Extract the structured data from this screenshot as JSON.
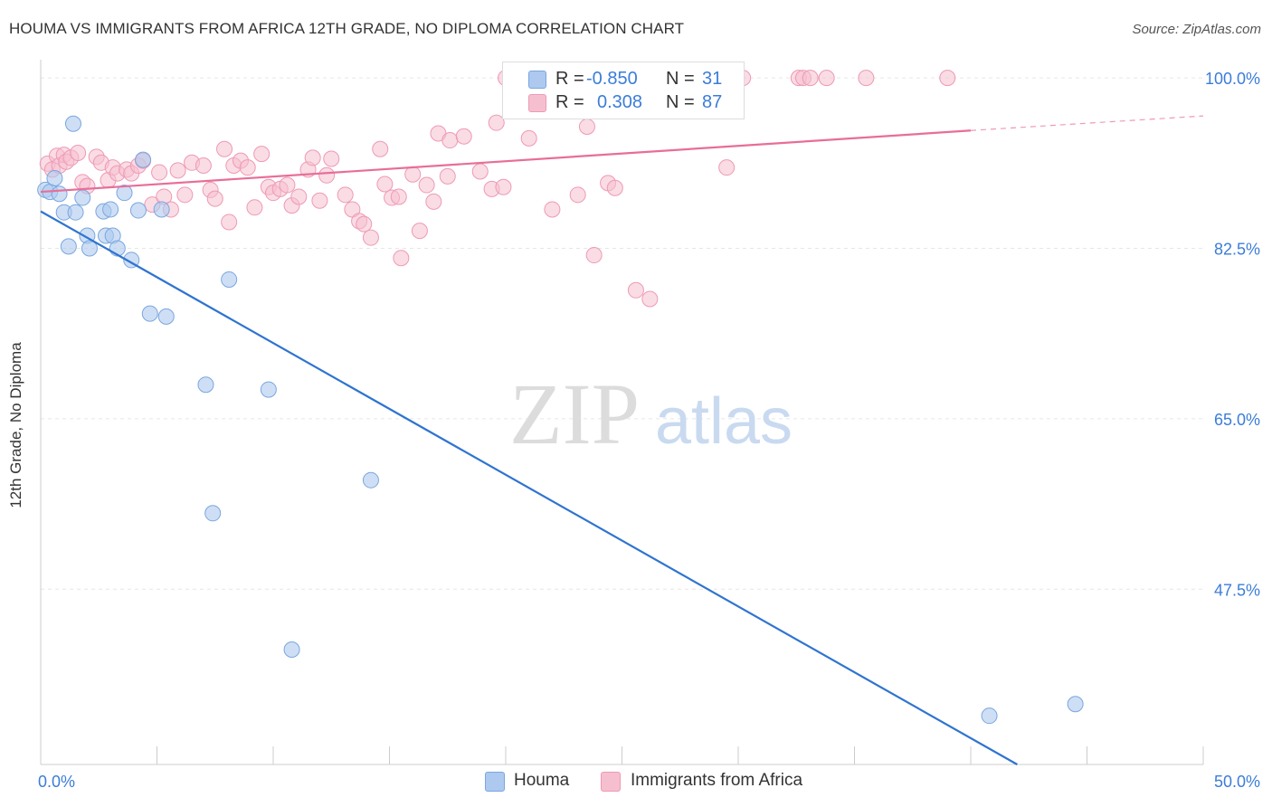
{
  "title": "HOUMA VS IMMIGRANTS FROM AFRICA 12TH GRADE, NO DIPLOMA CORRELATION CHART",
  "source": "Source: ZipAtlas.com",
  "watermark": {
    "zip": "ZIP",
    "atlas": "atlas"
  },
  "legend": {
    "houma": {
      "r_label": "R =",
      "r_value": "-0.850",
      "n_label": "N =",
      "n_value": "31"
    },
    "africa": {
      "r_label": "R =",
      "r_value": "0.308",
      "n_label": "N =",
      "n_value": "87"
    }
  },
  "bottom_legend": {
    "houma": "Houma",
    "africa": "Immigrants from Africa"
  },
  "colors": {
    "houma_fill": "#aec9ef",
    "houma_stroke": "#7aa6e0",
    "houma_line": "#2f74d0",
    "africa_fill": "#f6bfd0",
    "africa_stroke": "#ee9ab4",
    "africa_line": "#e86e97",
    "axis_label": "#3b7dd8",
    "grid": "#e6e6e6"
  },
  "chart_data": {
    "type": "scatter",
    "title": "HOUMA VS IMMIGRANTS FROM AFRICA 12TH GRADE, NO DIPLOMA CORRELATION CHART",
    "xlabel": "",
    "ylabel": "12th Grade, No Diploma",
    "xlim": [
      0,
      50
    ],
    "ylim": [
      29.5,
      101.5
    ],
    "x_tick_labels": [
      "0.0%",
      "50.0%"
    ],
    "y_ticks": [
      100,
      82.5,
      65,
      47.5
    ],
    "y_tick_labels": [
      "100.0%",
      "82.5%",
      "65.0%",
      "47.5%"
    ],
    "grid": true,
    "series": [
      {
        "name": "Houma",
        "r": -0.85,
        "n": 31,
        "trend": {
          "x": [
            0,
            42
          ],
          "y": [
            86.3,
            29.5
          ]
        },
        "points": [
          [
            0.2,
            88.5
          ],
          [
            0.4,
            88.3
          ],
          [
            0.6,
            89.7
          ],
          [
            0.8,
            88.1
          ],
          [
            1.0,
            86.2
          ],
          [
            1.2,
            82.7
          ],
          [
            1.4,
            95.3
          ],
          [
            1.5,
            86.2
          ],
          [
            1.8,
            87.7
          ],
          [
            2.0,
            83.8
          ],
          [
            2.1,
            82.5
          ],
          [
            2.7,
            86.3
          ],
          [
            2.8,
            83.8
          ],
          [
            3.0,
            86.5
          ],
          [
            3.1,
            83.8
          ],
          [
            3.3,
            82.5
          ],
          [
            3.6,
            88.2
          ],
          [
            3.9,
            81.3
          ],
          [
            4.2,
            86.4
          ],
          [
            4.4,
            91.6
          ],
          [
            4.7,
            75.8
          ],
          [
            5.2,
            86.5
          ],
          [
            5.4,
            75.5
          ],
          [
            7.1,
            68.5
          ],
          [
            7.4,
            55.3
          ],
          [
            8.1,
            79.3
          ],
          [
            9.8,
            68.0
          ],
          [
            10.8,
            41.3
          ],
          [
            14.2,
            58.7
          ],
          [
            40.8,
            34.5
          ],
          [
            44.5,
            35.7
          ]
        ]
      },
      {
        "name": "Immigrants from Africa",
        "r": 0.308,
        "n": 87,
        "trend": {
          "x": [
            0,
            40
          ],
          "y": [
            88.3,
            94.6
          ]
        },
        "trend_dashed": {
          "x": [
            40,
            50
          ],
          "y": [
            94.6,
            96.1
          ]
        },
        "points": [
          [
            0.3,
            91.2
          ],
          [
            0.5,
            90.6
          ],
          [
            0.7,
            92.0
          ],
          [
            0.8,
            91.0
          ],
          [
            1.0,
            92.1
          ],
          [
            1.1,
            91.4
          ],
          [
            1.3,
            91.8
          ],
          [
            1.6,
            92.3
          ],
          [
            1.8,
            89.3
          ],
          [
            2.0,
            88.9
          ],
          [
            2.4,
            91.9
          ],
          [
            2.6,
            91.3
          ],
          [
            2.9,
            89.5
          ],
          [
            3.1,
            90.8
          ],
          [
            3.3,
            90.2
          ],
          [
            3.7,
            90.6
          ],
          [
            3.9,
            90.2
          ],
          [
            4.2,
            91.0
          ],
          [
            4.4,
            91.5
          ],
          [
            4.8,
            87.0
          ],
          [
            5.1,
            90.3
          ],
          [
            5.3,
            87.8
          ],
          [
            5.6,
            86.5
          ],
          [
            5.9,
            90.5
          ],
          [
            6.2,
            88.0
          ],
          [
            6.5,
            91.3
          ],
          [
            7.0,
            91.0
          ],
          [
            7.3,
            88.5
          ],
          [
            7.5,
            87.6
          ],
          [
            7.9,
            92.7
          ],
          [
            8.1,
            85.2
          ],
          [
            8.3,
            91.0
          ],
          [
            8.6,
            91.5
          ],
          [
            8.9,
            90.8
          ],
          [
            9.2,
            86.7
          ],
          [
            9.5,
            92.2
          ],
          [
            9.8,
            88.8
          ],
          [
            10.0,
            88.2
          ],
          [
            10.3,
            88.6
          ],
          [
            10.6,
            89.0
          ],
          [
            10.8,
            86.9
          ],
          [
            11.1,
            87.8
          ],
          [
            11.5,
            90.6
          ],
          [
            11.7,
            91.8
          ],
          [
            12.0,
            87.4
          ],
          [
            12.3,
            90.0
          ],
          [
            12.5,
            91.7
          ],
          [
            13.1,
            88.0
          ],
          [
            13.4,
            86.5
          ],
          [
            13.7,
            85.3
          ],
          [
            13.9,
            85.0
          ],
          [
            14.2,
            83.6
          ],
          [
            14.6,
            92.7
          ],
          [
            14.8,
            89.1
          ],
          [
            15.1,
            87.7
          ],
          [
            15.4,
            87.8
          ],
          [
            15.5,
            81.5
          ],
          [
            16.0,
            90.1
          ],
          [
            16.3,
            84.3
          ],
          [
            16.6,
            89.0
          ],
          [
            16.9,
            87.3
          ],
          [
            17.1,
            94.3
          ],
          [
            17.5,
            89.9
          ],
          [
            17.6,
            93.6
          ],
          [
            18.2,
            94.0
          ],
          [
            18.9,
            90.4
          ],
          [
            19.4,
            88.6
          ],
          [
            19.6,
            95.4
          ],
          [
            19.9,
            88.8
          ],
          [
            20.0,
            100.0
          ],
          [
            21.0,
            93.8
          ],
          [
            22.0,
            86.5
          ],
          [
            23.1,
            88.0
          ],
          [
            23.5,
            95.0
          ],
          [
            23.8,
            81.8
          ],
          [
            24.4,
            89.2
          ],
          [
            24.7,
            88.7
          ],
          [
            25.6,
            78.2
          ],
          [
            26.2,
            77.3
          ],
          [
            29.5,
            90.8
          ],
          [
            30.2,
            100.0
          ],
          [
            32.6,
            100.0
          ],
          [
            32.8,
            100.0
          ],
          [
            33.1,
            100.0
          ],
          [
            33.8,
            100.0
          ],
          [
            35.5,
            100.0
          ],
          [
            39.0,
            100.0
          ]
        ]
      }
    ]
  }
}
